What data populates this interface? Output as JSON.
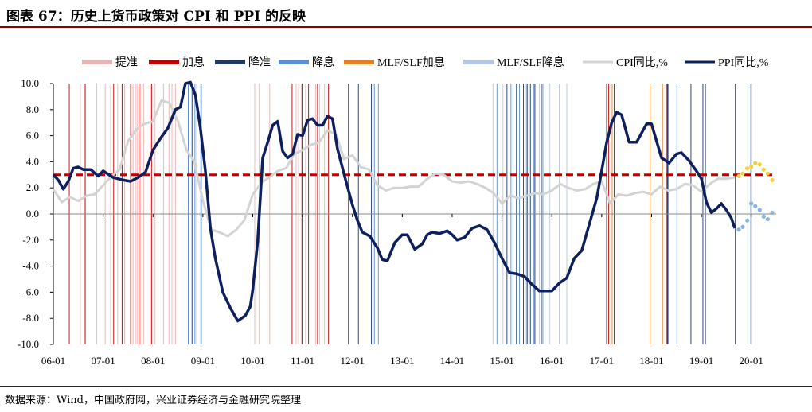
{
  "header": {
    "title": "图表 67：历史上货币政策对 CPI 和 PPI 的反映"
  },
  "footer": {
    "source": "数据来源：Wind，中国政府网，兴业证券经济与金融研究院整理"
  },
  "colors": {
    "rrr_hike": "#e8b4b4",
    "rate_hike": "#c00000",
    "rrr_cut": "#1f3864",
    "rate_cut": "#5b8fd8",
    "mlf_hike": "#e67e22",
    "mlf_cut": "#b4c8e4",
    "cpi": "#d3d3d3",
    "ppi": "#0d1f5c",
    "cpi_forecast": "#f5d13a",
    "ppi_forecast": "#8ab4e0",
    "threshold": "#c00000"
  },
  "chart_data": {
    "type": "line",
    "title": "历史上货币政策对 CPI 和 PPI 的反映",
    "ylim": [
      -10,
      10
    ],
    "yticks": [
      "10.0",
      "8.0",
      "6.0",
      "4.0",
      "2.0",
      "0.0",
      "-2.0",
      "-4.0",
      "-6.0",
      "-8.0",
      "-10.0"
    ],
    "ytick_values": [
      10,
      8,
      6,
      4,
      2,
      0,
      -2,
      -4,
      -6,
      -8,
      -10
    ],
    "xticks": [
      "06-01",
      "07-01",
      "08-01",
      "09-01",
      "10-01",
      "11-01",
      "12-01",
      "13-01",
      "14-01",
      "15-01",
      "16-01",
      "17-01",
      "18-01",
      "19-01",
      "20-01"
    ],
    "x_range_years": [
      2006.0,
      2020.5
    ],
    "legend": [
      "提准",
      "加息",
      "降准",
      "降息",
      "MLF/SLF加息",
      "MLF/SLF降息",
      "CPI同比,%",
      "PPI同比,%"
    ],
    "threshold_line": 3.0,
    "series": [
      {
        "name": "CPI同比,%",
        "x": [
          2006.0,
          2006.17,
          2006.33,
          2006.5,
          2006.67,
          2006.83,
          2007.0,
          2007.17,
          2007.33,
          2007.5,
          2007.67,
          2007.83,
          2008.0,
          2008.17,
          2008.33,
          2008.5,
          2008.67,
          2008.83,
          2009.0,
          2009.17,
          2009.33,
          2009.5,
          2009.67,
          2009.83,
          2010.0,
          2010.17,
          2010.33,
          2010.5,
          2010.67,
          2010.83,
          2011.0,
          2011.17,
          2011.33,
          2011.5,
          2011.67,
          2011.83,
          2012.0,
          2012.17,
          2012.33,
          2012.5,
          2012.67,
          2012.83,
          2013.0,
          2013.17,
          2013.33,
          2013.5,
          2013.67,
          2013.83,
          2014.0,
          2014.17,
          2014.33,
          2014.5,
          2014.67,
          2014.83,
          2015.0,
          2015.17,
          2015.33,
          2015.5,
          2015.67,
          2015.83,
          2016.0,
          2016.17,
          2016.33,
          2016.5,
          2016.67,
          2016.83,
          2017.0,
          2017.17,
          2017.33,
          2017.5,
          2017.67,
          2017.83,
          2018.0,
          2018.17,
          2018.33,
          2018.5,
          2018.67,
          2018.83,
          2019.0,
          2019.17,
          2019.33,
          2019.5,
          2019.67
        ],
        "values": [
          1.9,
          0.9,
          1.3,
          1.0,
          1.4,
          1.5,
          2.2,
          2.9,
          3.4,
          5.6,
          6.5,
          6.9,
          7.1,
          8.7,
          8.5,
          7.1,
          4.9,
          4.0,
          1.0,
          -1.2,
          -1.4,
          -1.7,
          -1.2,
          -0.5,
          1.5,
          2.4,
          2.8,
          3.3,
          3.5,
          4.6,
          4.9,
          5.3,
          5.5,
          6.4,
          6.1,
          4.2,
          4.5,
          3.6,
          3.4,
          2.2,
          1.8,
          2.0,
          2.0,
          2.1,
          2.1,
          2.7,
          3.1,
          3.0,
          2.5,
          2.4,
          2.5,
          2.3,
          2.0,
          1.6,
          0.8,
          1.4,
          1.2,
          1.4,
          1.6,
          1.5,
          1.8,
          2.3,
          2.0,
          1.8,
          1.9,
          2.3,
          2.5,
          0.8,
          1.5,
          1.4,
          1.6,
          1.7,
          1.5,
          2.1,
          1.8,
          1.9,
          2.3,
          2.2,
          1.7,
          2.3,
          2.7,
          2.7,
          2.8
        ]
      },
      {
        "name": "PPI同比,%",
        "x": [
          2006.0,
          2006.1,
          2006.2,
          2006.3,
          2006.4,
          2006.5,
          2006.6,
          2006.75,
          2006.9,
          2007.0,
          2007.2,
          2007.4,
          2007.55,
          2007.7,
          2007.85,
          2008.0,
          2008.15,
          2008.3,
          2008.45,
          2008.55,
          2008.65,
          2008.75,
          2008.85,
          2008.95,
          2009.05,
          2009.15,
          2009.25,
          2009.4,
          2009.55,
          2009.7,
          2009.85,
          2009.95,
          2010.0,
          2010.1,
          2010.2,
          2010.3,
          2010.4,
          2010.5,
          2010.6,
          2010.7,
          2010.8,
          2010.9,
          2011.0,
          2011.1,
          2011.2,
          2011.3,
          2011.4,
          2011.5,
          2011.6,
          2011.7,
          2011.85,
          2012.0,
          2012.1,
          2012.2,
          2012.35,
          2012.5,
          2012.6,
          2012.7,
          2012.85,
          2013.0,
          2013.1,
          2013.25,
          2013.4,
          2013.5,
          2013.6,
          2013.75,
          2013.9,
          2014.0,
          2014.1,
          2014.25,
          2014.4,
          2014.55,
          2014.7,
          2014.85,
          2015.0,
          2015.15,
          2015.3,
          2015.45,
          2015.6,
          2015.75,
          2015.9,
          2016.0,
          2016.15,
          2016.3,
          2016.45,
          2016.6,
          2016.75,
          2016.9,
          2017.0,
          2017.1,
          2017.2,
          2017.3,
          2017.4,
          2017.55,
          2017.7,
          2017.8,
          2017.9,
          2018.0,
          2018.1,
          2018.2,
          2018.35,
          2018.5,
          2018.6,
          2018.75,
          2018.9,
          2019.0,
          2019.1,
          2019.2,
          2019.3,
          2019.4,
          2019.5,
          2019.6,
          2019.67
        ],
        "values": [
          3.0,
          2.6,
          1.9,
          2.5,
          3.5,
          3.6,
          3.4,
          3.4,
          2.9,
          3.3,
          2.8,
          2.6,
          2.5,
          2.8,
          3.2,
          4.9,
          5.8,
          6.6,
          8.0,
          8.2,
          10.0,
          10.1,
          9.1,
          6.6,
          3.3,
          -1.1,
          -3.4,
          -6.0,
          -7.2,
          -8.2,
          -7.8,
          -7.1,
          -5.8,
          -2.1,
          4.3,
          5.5,
          6.8,
          7.1,
          4.8,
          4.3,
          4.6,
          6.1,
          6.0,
          7.2,
          7.3,
          6.8,
          6.8,
          7.5,
          7.3,
          5.0,
          2.8,
          0.7,
          -0.5,
          -1.4,
          -1.7,
          -2.6,
          -3.5,
          -3.6,
          -2.2,
          -1.6,
          -1.6,
          -2.7,
          -2.3,
          -1.6,
          -1.4,
          -1.5,
          -1.3,
          -1.6,
          -2.0,
          -1.8,
          -1.1,
          -0.9,
          -1.2,
          -2.2,
          -3.4,
          -4.5,
          -4.6,
          -4.8,
          -5.4,
          -5.9,
          -5.9,
          -5.9,
          -5.3,
          -4.9,
          -3.4,
          -2.8,
          -0.8,
          1.2,
          3.3,
          5.5,
          7.0,
          7.8,
          7.6,
          5.5,
          5.5,
          6.2,
          6.9,
          6.9,
          5.6,
          4.3,
          3.9,
          4.6,
          4.7,
          4.1,
          3.3,
          2.7,
          0.9,
          0.1,
          0.4,
          0.8,
          0.3,
          -0.3,
          -1.1
        ]
      },
      {
        "name": "CPI预测",
        "x": [
          2019.75,
          2019.83,
          2019.92,
          2020.0,
          2020.08,
          2020.17,
          2020.25,
          2020.33,
          2020.42
        ],
        "values": [
          2.9,
          3.1,
          3.5,
          3.6,
          3.9,
          3.8,
          3.4,
          3.1,
          2.6
        ]
      },
      {
        "name": "PPI预测",
        "x": [
          2019.75,
          2019.83,
          2019.92,
          2020.0,
          2020.08,
          2020.17,
          2020.25,
          2020.33,
          2020.42
        ],
        "values": [
          -1.2,
          -1.0,
          -0.5,
          0.8,
          0.6,
          0.3,
          -0.2,
          -0.4,
          0.1
        ]
      }
    ],
    "policy_events": [
      {
        "type": "rrr_hike",
        "x": [
          2006.54,
          2006.62,
          2006.87,
          2007.04,
          2007.15,
          2007.29,
          2007.38,
          2007.43,
          2007.6,
          2007.68,
          2007.75,
          2007.81,
          2007.94,
          2008.04,
          2008.21,
          2008.32,
          2008.38,
          2008.45,
          2010.04,
          2010.13,
          2010.34,
          2010.87,
          2010.92,
          2010.98,
          2011.06,
          2011.15,
          2011.26,
          2011.34,
          2011.44
        ]
      },
      {
        "type": "rate_hike",
        "x": [
          2006.32,
          2006.64,
          2007.21,
          2007.38,
          2007.55,
          2007.64,
          2007.72,
          2007.97,
          2010.79,
          2010.99,
          2011.12,
          2011.3,
          2011.52,
          2017.14,
          2017.25,
          2018.3,
          2018.33
        ]
      },
      {
        "type": "rrr_cut",
        "x": [
          2008.71,
          2008.79,
          2008.88,
          2008.96,
          2011.92,
          2012.12,
          2012.38,
          2015.1,
          2015.29,
          2015.43,
          2015.51,
          2015.57,
          2015.66,
          2015.79,
          2016.16,
          2018.32,
          2018.51,
          2018.79,
          2019.03,
          2019.08,
          2019.68,
          2020.0
        ]
      },
      {
        "type": "rate_cut",
        "x": [
          2008.71,
          2008.78,
          2008.84,
          2008.97,
          2012.44,
          2012.52,
          2014.9,
          2015.18,
          2015.35,
          2015.49,
          2015.64,
          2015.82
        ]
      },
      {
        "type": "mlf_hike",
        "x": [
          2017.09,
          2017.21,
          2017.97,
          2018.22
        ]
      },
      {
        "type": "mlf_cut",
        "x": [
          2014.82,
          2015.02,
          2015.22,
          2015.5,
          2015.75,
          2015.96,
          2016.3,
          2019.93,
          2019.98
        ]
      }
    ]
  }
}
